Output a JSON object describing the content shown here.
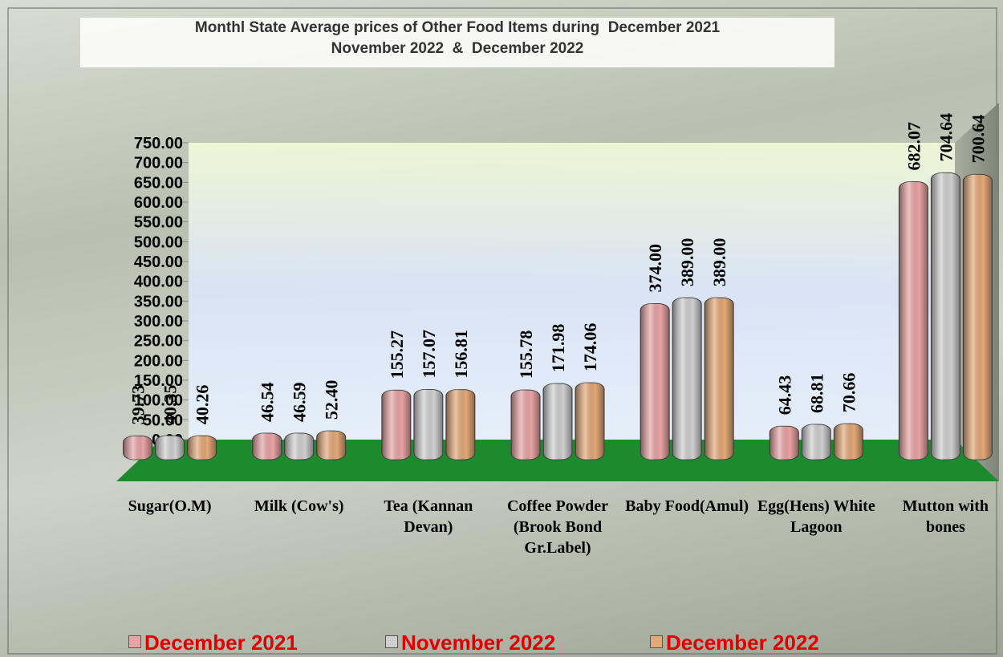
{
  "chart_data": {
    "type": "bar",
    "title": [
      "Monthl State Average prices of Other Food Items during  December 2021",
      "November 2022  &  December 2022"
    ],
    "categories": [
      "Sugar(O.M)",
      "Milk (Cow's)",
      "Tea (Kannan Devan)",
      "Coffee Powder (Brook Bond Gr.Label)",
      "Baby Food(Amul)",
      "Egg(Hens) White Lagoon",
      "Mutton with  bones"
    ],
    "series": [
      {
        "name": "December 2021",
        "color": "#e8a3a3",
        "values": [
          39.73,
          46.54,
          155.27,
          155.78,
          374,
          64.43,
          682.07
        ],
        "value_labels": [
          "39.73",
          "46.54",
          "155.27",
          "155.78",
          "374.00",
          "64.43",
          "682.07"
        ]
      },
      {
        "name": "November 2022",
        "color": "#cfcfcf",
        "values": [
          40.35,
          46.59,
          157.07,
          171.98,
          389,
          68.81,
          704.64
        ],
        "value_labels": [
          "40.35",
          "46.59",
          "157.07",
          "171.98",
          "389.00",
          "68.81",
          "704.64"
        ]
      },
      {
        "name": "December 2022",
        "color": "#e3a877",
        "values": [
          40.26,
          52.4,
          156.81,
          174.06,
          389,
          70.66,
          700.64
        ],
        "value_labels": [
          "40.26",
          "52.40",
          "156.81",
          "174.06",
          "389.00",
          "70.66",
          "700.64"
        ]
      }
    ],
    "ylim": [
      0,
      750
    ],
    "yticks": [
      {
        "value": 0,
        "label": "0.00"
      },
      {
        "value": 50,
        "label": "50.00"
      },
      {
        "value": 100,
        "label": "100.00"
      },
      {
        "value": 150,
        "label": "150.00"
      },
      {
        "value": 200,
        "label": "200.00"
      },
      {
        "value": 250,
        "label": "250.00"
      },
      {
        "value": 300,
        "label": "300.00"
      },
      {
        "value": 350,
        "label": "350.00"
      },
      {
        "value": 400,
        "label": "400.00"
      },
      {
        "value": 450,
        "label": "450.00"
      },
      {
        "value": 500,
        "label": "500.00"
      },
      {
        "value": 550,
        "label": "550.00"
      },
      {
        "value": 600,
        "label": "600.00"
      },
      {
        "value": 650,
        "label": "650.00"
      },
      {
        "value": 700,
        "label": "700.00"
      },
      {
        "value": 750,
        "label": "750.00"
      }
    ],
    "legend": "bottom"
  }
}
